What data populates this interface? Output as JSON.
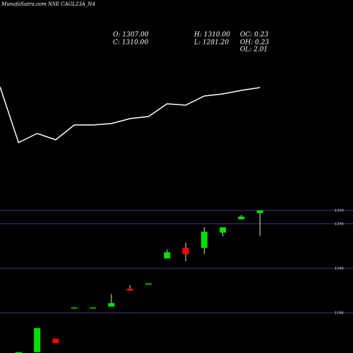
{
  "chart_data": [
    {
      "type": "line",
      "title": "MunafaSutra.com NSE CAGL23A_N4",
      "color": "#ffffff",
      "categories": [
        null,
        null,
        null,
        null,
        null,
        null,
        null,
        null,
        null,
        null,
        null,
        null,
        null,
        null,
        null
      ],
      "values": [
        127,
        48,
        61,
        52,
        73,
        73,
        75,
        82,
        85,
        103,
        101,
        114,
        117,
        122,
        126
      ],
      "ylim": [
        0,
        250
      ]
    },
    {
      "type": "candlestick",
      "info": [
        "O: 1307.00",
        "H: 1310.00",
        "OC: 0.23",
        "C: 1310.00",
        "L: 1281.20",
        "OH: 0.23",
        "OL: 2.01"
      ],
      "categories": [
        null,
        null,
        null,
        null,
        null,
        null,
        null,
        null,
        null,
        null,
        null,
        null,
        null,
        null
      ],
      "open": [
        1151,
        1151,
        1166,
        1201,
        1201,
        1202,
        1222,
        1228,
        1256,
        1268,
        1268,
        1285,
        1300,
        1307
      ],
      "high": [
        1151,
        1178,
        1166,
        1201,
        1201,
        1216,
        1226,
        1228,
        1266,
        1274,
        1291,
        1291,
        1305,
        1310
      ],
      "low": [
        1151,
        1151,
        1161,
        1201,
        1201,
        1202,
        1220,
        1228,
        1256,
        1253,
        1261,
        1281,
        1300,
        1281.2
      ],
      "close": [
        1151,
        1178,
        1161,
        1201,
        1201,
        1206,
        1220,
        1228,
        1263,
        1261,
        1286,
        1291,
        1303,
        1310
      ],
      "up_color": "#00e000",
      "down_color": "#ff0000",
      "ylim": [
        1150,
        1546
      ],
      "yticks": [
        1310,
        1295,
        1245,
        1195
      ],
      "grid": true
    }
  ]
}
